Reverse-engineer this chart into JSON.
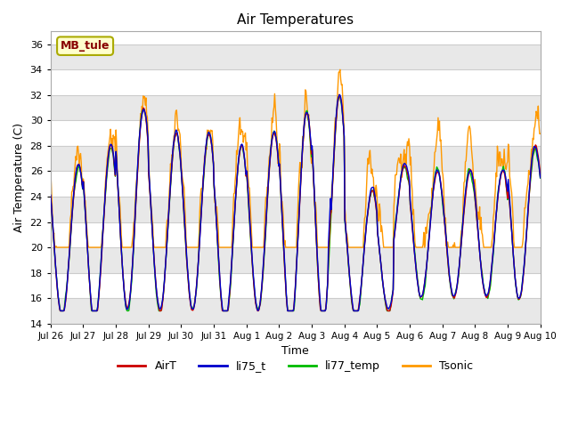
{
  "title": "Air Temperatures",
  "xlabel": "Time",
  "ylabel": "Air Temperature (C)",
  "ylim": [
    14,
    37
  ],
  "yticks": [
    14,
    16,
    18,
    20,
    22,
    24,
    26,
    28,
    30,
    32,
    34,
    36
  ],
  "station_label": "MB_tule",
  "bg_color": "#ffffff",
  "band_color": "#e8e8e8",
  "line_colors": {
    "AirT": "#cc0000",
    "li75_t": "#0000cc",
    "li77_temp": "#00bb00",
    "Tsonic": "#ff9900"
  },
  "legend_labels": [
    "AirT",
    "li75_t",
    "li77_temp",
    "Tsonic"
  ],
  "x_tick_labels": [
    "Jul 26",
    "Jul 27",
    "Jul 28",
    "Jul 29",
    "Jul 30",
    "Jul 31",
    "Aug 1",
    "Aug 2",
    "Aug 3",
    "Aug 4",
    "Aug 5",
    "Aug 6",
    "Aug 7",
    "Aug 8",
    "Aug 9",
    "Aug 10"
  ],
  "num_points": 720
}
